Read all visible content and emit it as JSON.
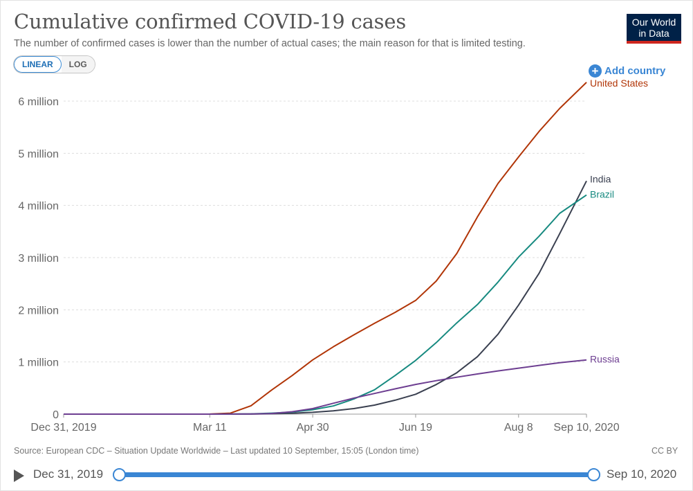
{
  "header": {
    "title": "Cumulative confirmed COVID-19 cases",
    "subtitle": "The number of confirmed cases is lower than the number of actual cases; the main reason for that is limited testing.",
    "logo_line1": "Our World",
    "logo_line2": "in Data"
  },
  "controls": {
    "linear_label": "LINEAR",
    "log_label": "LOG",
    "add_country_label": "Add country",
    "add_icon": "plus-circle-icon"
  },
  "footer": {
    "source": "Source: European CDC – Situation Update Worldwide – Last updated 10 September, 15:05 (London time)",
    "license": "CC BY"
  },
  "timeline": {
    "start_label": "Dec 31, 2019",
    "end_label": "Sep 10, 2020",
    "play_icon": "play-icon",
    "start_position": 0,
    "end_position": 1
  },
  "colors": {
    "United States": "#b13507",
    "India": "#3a4050",
    "Brazil": "#178a80",
    "Russia": "#6d3e91",
    "accent": "#3a86d4"
  },
  "chart_data": {
    "type": "line",
    "title": "Cumulative confirmed COVID-19 cases",
    "xlabel": "",
    "ylabel": "",
    "x_type": "date",
    "xlim": [
      "2019-12-31",
      "2020-09-10"
    ],
    "ylim": [
      0,
      6000000
    ],
    "grid": "horizontal dashed",
    "legend": "line-end labels",
    "yticks": [
      {
        "value": 0,
        "label": "0"
      },
      {
        "value": 1000000,
        "label": "1 million"
      },
      {
        "value": 2000000,
        "label": "2 million"
      },
      {
        "value": 3000000,
        "label": "3 million"
      },
      {
        "value": 4000000,
        "label": "4 million"
      },
      {
        "value": 5000000,
        "label": "5 million"
      },
      {
        "value": 6000000,
        "label": "6 million"
      }
    ],
    "xticks": [
      {
        "value": "2019-12-31",
        "label": "Dec 31, 2019"
      },
      {
        "value": "2020-03-11",
        "label": "Mar 11"
      },
      {
        "value": "2020-04-30",
        "label": "Apr 30"
      },
      {
        "value": "2020-06-19",
        "label": "Jun 19"
      },
      {
        "value": "2020-08-08",
        "label": "Aug 8"
      },
      {
        "value": "2020-09-10",
        "label": "Sep 10, 2020"
      }
    ],
    "series": [
      {
        "name": "United States",
        "x": [
          "2019-12-31",
          "2020-03-01",
          "2020-03-11",
          "2020-03-21",
          "2020-03-31",
          "2020-04-10",
          "2020-04-20",
          "2020-04-30",
          "2020-05-10",
          "2020-05-20",
          "2020-05-30",
          "2020-06-09",
          "2020-06-19",
          "2020-06-29",
          "2020-07-09",
          "2020-07-19",
          "2020-07-29",
          "2020-08-08",
          "2020-08-18",
          "2020-08-28",
          "2020-09-10"
        ],
        "y": [
          0,
          30,
          1000,
          19000,
          160000,
          460000,
          740000,
          1040000,
          1290000,
          1520000,
          1740000,
          1950000,
          2180000,
          2550000,
          3080000,
          3780000,
          4420000,
          4930000,
          5420000,
          5860000,
          6360000
        ]
      },
      {
        "name": "India",
        "x": [
          "2019-12-31",
          "2020-03-11",
          "2020-03-31",
          "2020-04-10",
          "2020-04-20",
          "2020-04-30",
          "2020-05-10",
          "2020-05-20",
          "2020-05-30",
          "2020-06-09",
          "2020-06-19",
          "2020-06-29",
          "2020-07-09",
          "2020-07-19",
          "2020-07-29",
          "2020-08-08",
          "2020-08-18",
          "2020-08-28",
          "2020-09-10"
        ],
        "y": [
          0,
          60,
          1400,
          6800,
          17000,
          34000,
          63000,
          106000,
          173000,
          267000,
          381000,
          567000,
          794000,
          1100000,
          1530000,
          2090000,
          2700000,
          3460000,
          4470000
        ]
      },
      {
        "name": "Brazil",
        "x": [
          "2019-12-31",
          "2020-03-11",
          "2020-03-21",
          "2020-03-31",
          "2020-04-10",
          "2020-04-20",
          "2020-04-30",
          "2020-05-10",
          "2020-05-20",
          "2020-05-30",
          "2020-06-09",
          "2020-06-19",
          "2020-06-29",
          "2020-07-09",
          "2020-07-19",
          "2020-07-29",
          "2020-08-08",
          "2020-08-18",
          "2020-08-28",
          "2020-09-10"
        ],
        "y": [
          0,
          50,
          900,
          5700,
          18000,
          40000,
          85000,
          156000,
          291000,
          466000,
          740000,
          1030000,
          1370000,
          1750000,
          2100000,
          2530000,
          3010000,
          3410000,
          3850000,
          4200000
        ]
      },
      {
        "name": "Russia",
        "x": [
          "2019-12-31",
          "2020-03-11",
          "2020-03-31",
          "2020-04-10",
          "2020-04-20",
          "2020-04-30",
          "2020-05-10",
          "2020-05-20",
          "2020-05-30",
          "2020-06-09",
          "2020-06-19",
          "2020-06-29",
          "2020-07-09",
          "2020-07-19",
          "2020-07-29",
          "2020-08-08",
          "2020-08-18",
          "2020-08-28",
          "2020-09-10"
        ],
        "y": [
          0,
          20,
          2300,
          12000,
          47000,
          106000,
          209000,
          308000,
          396000,
          485000,
          570000,
          641000,
          707000,
          770000,
          828000,
          882000,
          935000,
          985000,
          1040000
        ]
      }
    ]
  }
}
